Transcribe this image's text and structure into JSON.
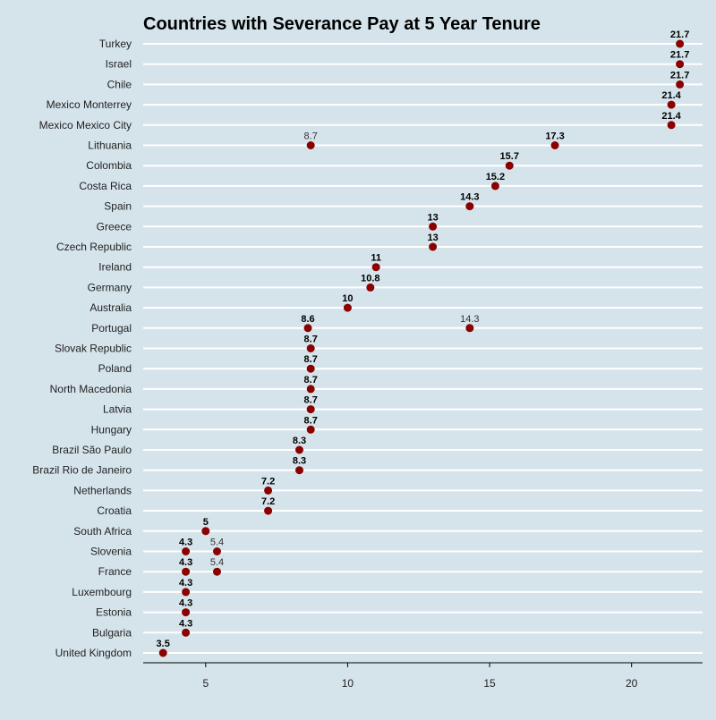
{
  "chart_data": {
    "type": "scatter",
    "title": "Countries with Severance Pay at 5 Year Tenure",
    "xlabel": "",
    "ylabel": "",
    "xlim": [
      2.8,
      22.5
    ],
    "xticks": [
      "5",
      "10",
      "15",
      "20"
    ],
    "grid": "horizontal",
    "point_color": "#8b0000",
    "categories": [
      "Turkey",
      "Israel",
      "Chile",
      "Mexico Monterrey",
      "Mexico Mexico City",
      "Lithuania",
      "Colombia",
      "Costa Rica",
      "Spain",
      "Greece",
      "Czech Republic",
      "Ireland",
      "Germany",
      "Australia",
      "Portugal",
      "Slovak Republic",
      "Poland",
      "North Macedonia",
      "Latvia",
      "Hungary",
      "Brazil São Paulo",
      "Brazil Rio de Janeiro",
      "Netherlands",
      "Croatia",
      "South Africa",
      "Slovenia",
      "France",
      "Luxembourg",
      "Estonia",
      "Bulgaria",
      "United Kingdom"
    ],
    "series": [
      {
        "values": [
          21.7,
          21.7,
          21.7,
          21.4,
          21.4,
          17.3,
          15.7,
          15.2,
          14.3,
          13,
          13,
          11,
          10.8,
          10,
          8.6,
          8.7,
          8.7,
          8.7,
          8.7,
          8.7,
          8.3,
          8.3,
          7.2,
          7.2,
          5,
          4.3,
          4.3,
          4.3,
          4.3,
          4.3,
          3.5
        ],
        "labels": [
          "21.7",
          "21.7",
          "21.7",
          "21.4",
          "21.4",
          "17.3",
          "15.7",
          "15.2",
          "14.3",
          "13",
          "13",
          "11",
          "10.8",
          "10",
          "8.6",
          "8.7",
          "8.7",
          "8.7",
          "8.7",
          "8.7",
          "8.3",
          "8.3",
          "7.2",
          "7.2",
          "5",
          "4.3",
          "4.3",
          "4.3",
          "4.3",
          "4.3",
          "3.5"
        ]
      },
      {
        "values": [
          null,
          null,
          null,
          null,
          null,
          8.7,
          null,
          null,
          null,
          null,
          null,
          null,
          null,
          null,
          14.3,
          null,
          null,
          null,
          null,
          null,
          null,
          null,
          null,
          null,
          null,
          5.4,
          5.4,
          null,
          null,
          null,
          null
        ],
        "labels": [
          null,
          null,
          null,
          null,
          null,
          "8.7",
          null,
          null,
          null,
          null,
          null,
          null,
          null,
          null,
          "14.3",
          null,
          null,
          null,
          null,
          null,
          null,
          null,
          null,
          null,
          null,
          "5.4",
          "5.4",
          null,
          null,
          null,
          null
        ]
      }
    ]
  }
}
